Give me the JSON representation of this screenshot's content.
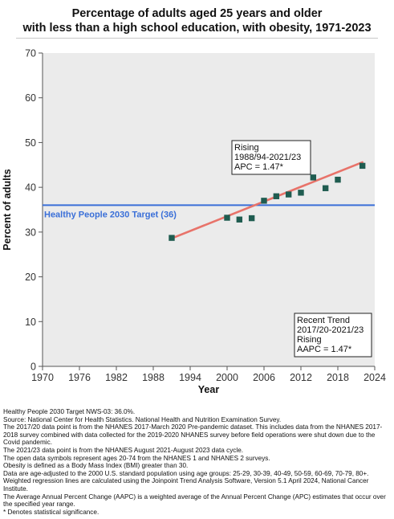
{
  "chart_data": {
    "type": "line",
    "title_lines": [
      "Percentage of adults aged 25 years and older",
      "with less than a high school education, with obesity, 1971-2023"
    ],
    "xlabel": "Year",
    "ylabel": "Percent of adults",
    "xlim": [
      1970,
      2024
    ],
    "ylim": [
      0,
      70
    ],
    "xticks": [
      1970,
      1976,
      1982,
      1988,
      1994,
      2000,
      2006,
      2012,
      2018,
      2024
    ],
    "yticks": [
      0,
      10,
      20,
      30,
      40,
      50,
      60,
      70
    ],
    "grid": false,
    "points": [
      {
        "x": 1991,
        "y": 28.7
      },
      {
        "x": 2000,
        "y": 33.2
      },
      {
        "x": 2002,
        "y": 32.8
      },
      {
        "x": 2004,
        "y": 33.1
      },
      {
        "x": 2006,
        "y": 37.0
      },
      {
        "x": 2008,
        "y": 38.0
      },
      {
        "x": 2010,
        "y": 38.4
      },
      {
        "x": 2012,
        "y": 38.8
      },
      {
        "x": 2014,
        "y": 42.2
      },
      {
        "x": 2016,
        "y": 39.8
      },
      {
        "x": 2018,
        "y": 41.7
      },
      {
        "x": 2022,
        "y": 44.8
      }
    ],
    "trend_line": {
      "x": [
        1991,
        2022
      ],
      "y": [
        28.6,
        45.6
      ]
    },
    "target": {
      "value": 36,
      "label": "Healthy People 2030 Target (36)"
    },
    "annotations": [
      {
        "lines": [
          "Rising",
          "1988/94-2021/23",
          "APC =  1.47*"
        ]
      },
      {
        "lines": [
          "Recent Trend",
          "2017/20-2021/23",
          "Rising",
          "AAPC =  1.47*"
        ]
      }
    ],
    "colors": {
      "plot_bg": "#ebebeb",
      "point": "#1f5c50",
      "trend": "#e8736a",
      "target": "#3a6fd8",
      "axis": "#555555"
    }
  },
  "footnotes": [
    "Healthy People 2030 Target NWS-03: 36.0%.",
    "Source: National Center for Health Statistics. National Health and Nutrition Examination Survey.",
    "The 2017/20 data point is from the NHANES 2017-March 2020 Pre-pandemic dataset. This includes data from the NHANES 2017-2018 survey combined with data collected for the 2019-2020 NHANES survey before field operations were shut down due to the Covid pandemic.",
    "The 2021/23 data point is from the NHANES August 2021-August 2023 data cycle.",
    "The open data symbols represent ages 20-74 from the NHANES 1 and NHANES 2 surveys.",
    "Obesity is defined as a Body Mass Index (BMI) greater than 30.",
    "Data are age-adjusted to the 2000 U.S. standard population using age groups: 25-29, 30-39, 40-49, 50-59, 60-69, 70-79, 80+.",
    "Weighted regression lines are calculated using the Joinpoint Trend Analysis Software, Version 5.1 April 2024, National Cancer Institute.",
    "The Average Annual Percent Change (AAPC) is a weighted average of the Annual Percent Change (APC) estimates that occur over the specified year range.",
    "* Denotes statistical significance."
  ]
}
